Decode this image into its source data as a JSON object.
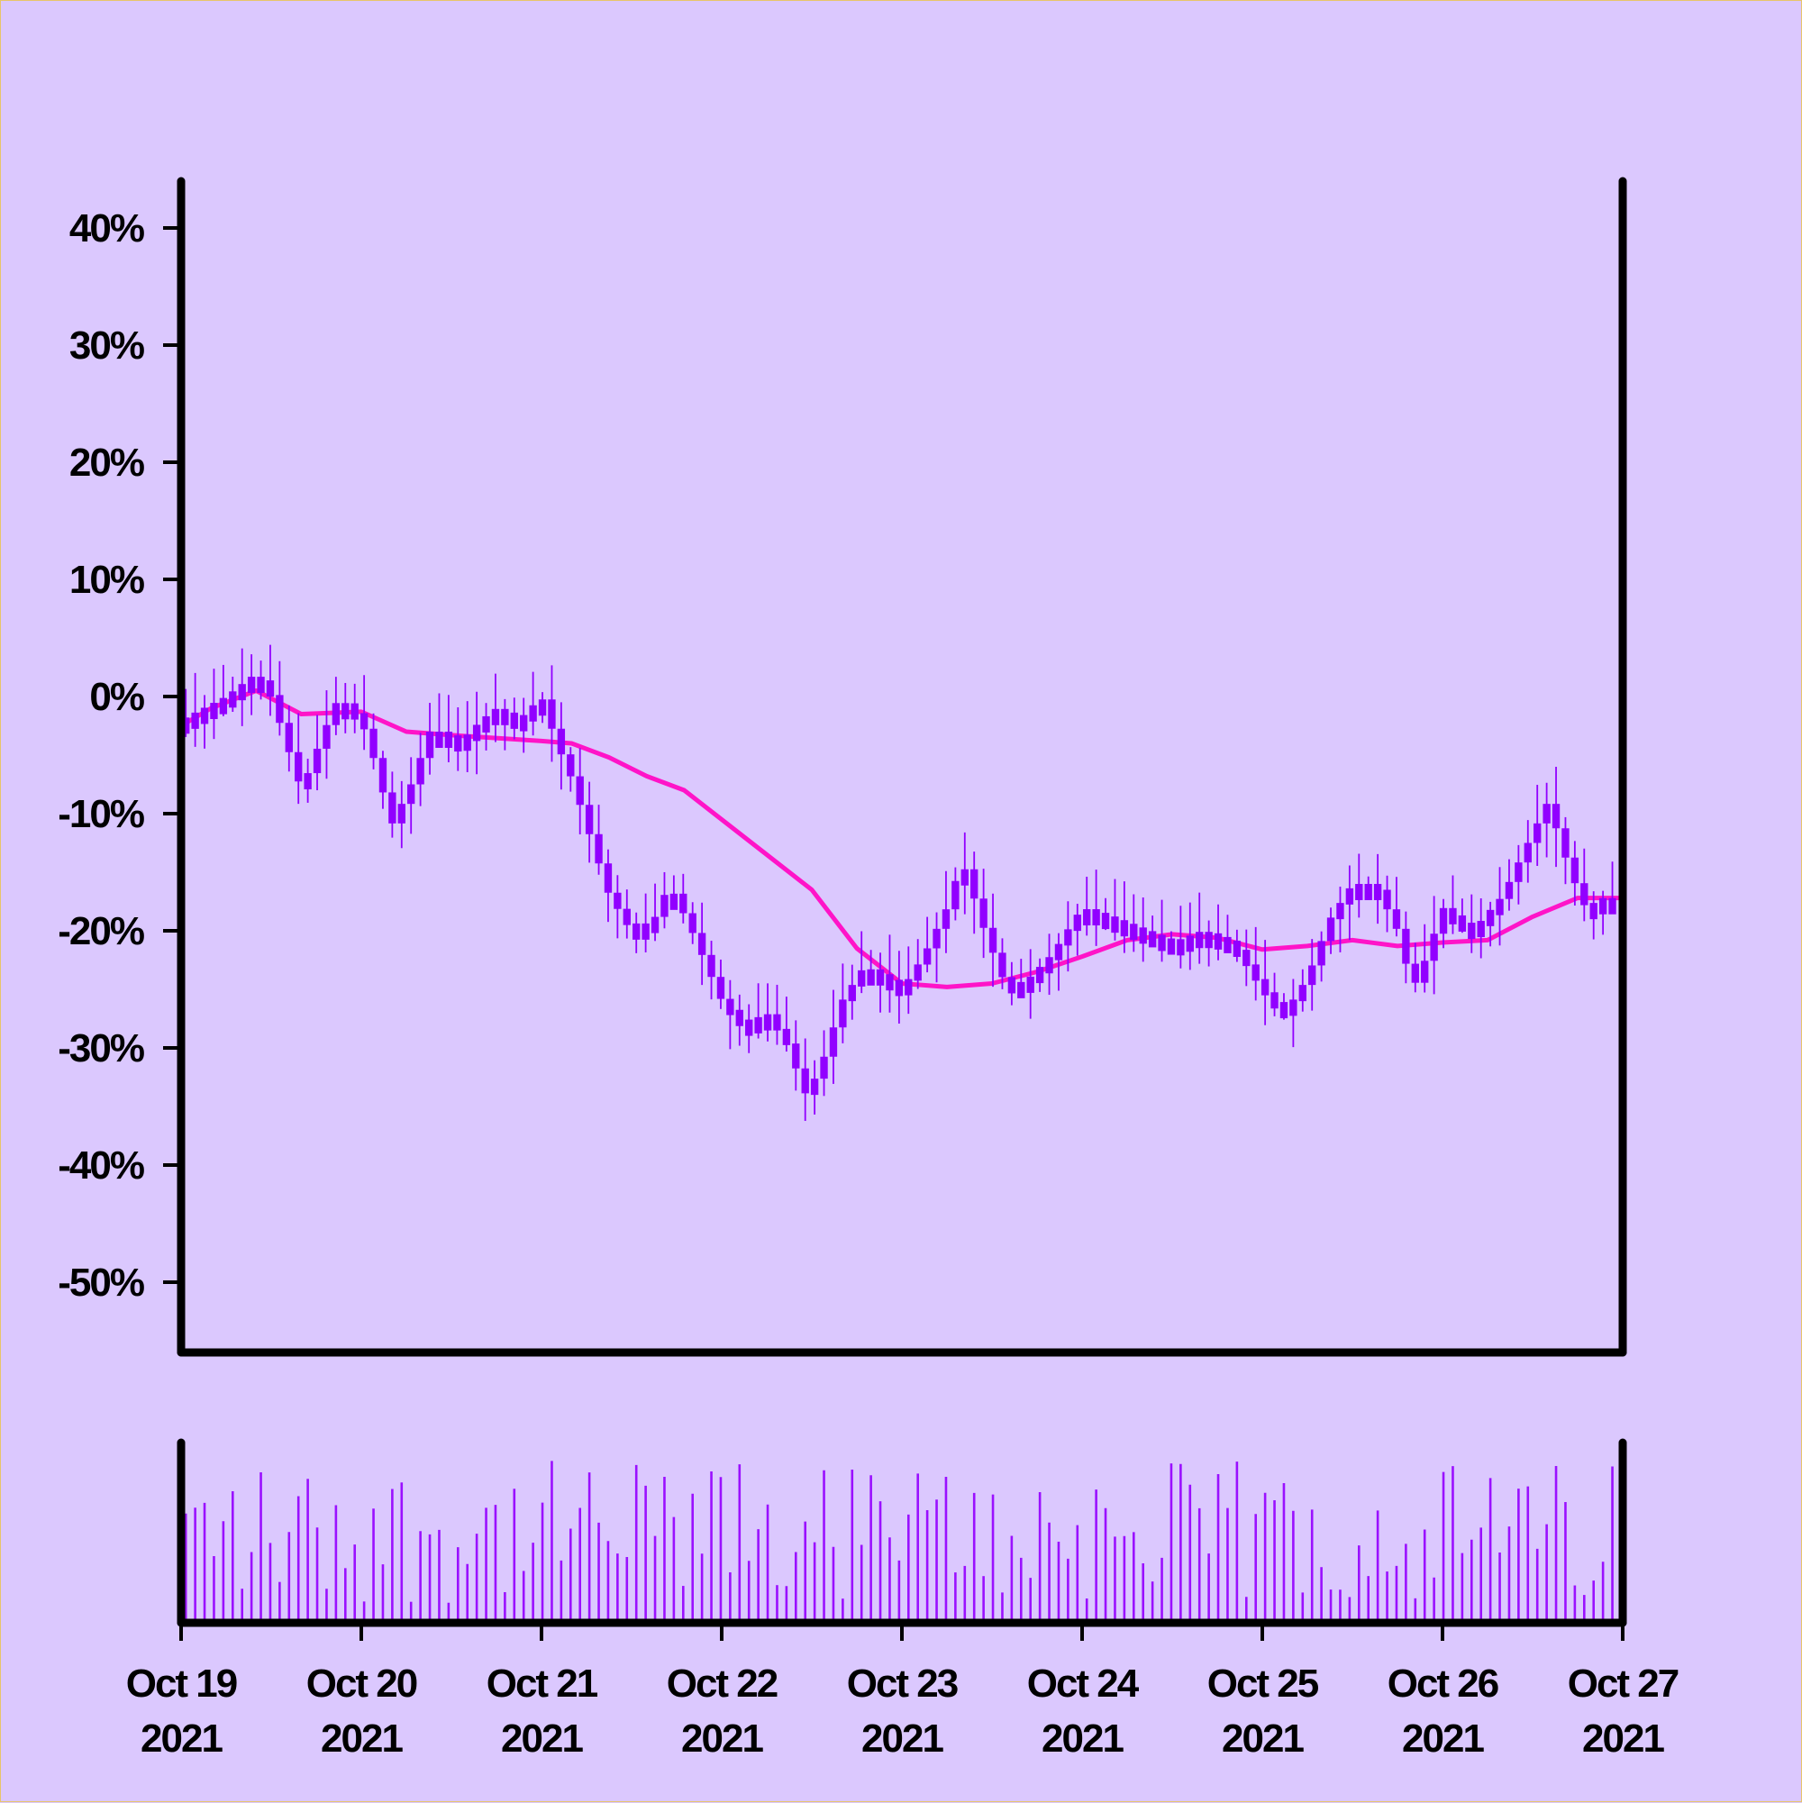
{
  "chart_data": {
    "type": "candlestick",
    "colors": {
      "background": "#dbc8fe",
      "candle": "#9100ff",
      "moving_average": "#ff14c8",
      "volume": "#9a10ff",
      "axis": "#000000"
    },
    "x_axis": {
      "ticks": [
        {
          "line1": "Oct 19",
          "line2": "2021"
        },
        {
          "line1": "Oct 20",
          "line2": "2021"
        },
        {
          "line1": "Oct 21",
          "line2": "2021"
        },
        {
          "line1": "Oct 22",
          "line2": "2021"
        },
        {
          "line1": "Oct 23",
          "line2": "2021"
        },
        {
          "line1": "Oct 24",
          "line2": "2021"
        },
        {
          "line1": "Oct 25",
          "line2": "2021"
        },
        {
          "line1": "Oct 26",
          "line2": "2021"
        },
        {
          "line1": "Oct 27",
          "line2": "2021"
        }
      ],
      "start": "2021-10-19",
      "end": "2021-10-27"
    },
    "y_axis": {
      "ticks": [
        40,
        30,
        20,
        10,
        0,
        -10,
        -20,
        -30,
        -40,
        -50
      ],
      "tick_labels": [
        "40%",
        "30%",
        "20%",
        "10%",
        "0%",
        "-10%",
        "-20%",
        "-30%",
        "-40%",
        "-50%"
      ],
      "ylim": [
        -56,
        44
      ]
    },
    "price_path": [
      [
        "2021-10-19T00:00",
        -2
      ],
      [
        "2021-10-19T06:00",
        0
      ],
      [
        "2021-10-19T10:00",
        2
      ],
      [
        "2021-10-19T12:00",
        0
      ],
      [
        "2021-10-19T14:00",
        -4
      ],
      [
        "2021-10-19T16:00",
        -8
      ],
      [
        "2021-10-19T19:00",
        -3
      ],
      [
        "2021-10-19T21:00",
        0
      ],
      [
        "2021-10-20T00:00",
        -2
      ],
      [
        "2021-10-20T02:00",
        -6
      ],
      [
        "2021-10-20T04:00",
        -11
      ],
      [
        "2021-10-20T07:00",
        -7
      ],
      [
        "2021-10-20T09:00",
        -3
      ],
      [
        "2021-10-20T11:00",
        -3
      ],
      [
        "2021-10-20T13:00",
        -4
      ],
      [
        "2021-10-20T16:00",
        -2
      ],
      [
        "2021-10-20T18:00",
        -1
      ],
      [
        "2021-10-20T21:00",
        -2
      ],
      [
        "2021-10-21T00:00",
        0
      ],
      [
        "2021-10-21T02:00",
        -4
      ],
      [
        "2021-10-21T04:00",
        -7
      ],
      [
        "2021-10-21T07:00",
        -13
      ],
      [
        "2021-10-21T09:00",
        -17
      ],
      [
        "2021-10-21T12:00",
        -20
      ],
      [
        "2021-10-21T15:00",
        -19
      ],
      [
        "2021-10-21T17:00",
        -16
      ],
      [
        "2021-10-21T20:00",
        -20
      ],
      [
        "2021-10-22T00:00",
        -26
      ],
      [
        "2021-10-22T03:00",
        -28
      ],
      [
        "2021-10-22T06:00",
        -27
      ],
      [
        "2021-10-22T09:00",
        -30
      ],
      [
        "2021-10-22T11:00",
        -34
      ],
      [
        "2021-10-22T13:00",
        -32
      ],
      [
        "2021-10-22T16:00",
        -26
      ],
      [
        "2021-10-22T19:00",
        -23
      ],
      [
        "2021-10-22T22:00",
        -24
      ],
      [
        "2021-10-23T00:00",
        -25
      ],
      [
        "2021-10-23T03:00",
        -22
      ],
      [
        "2021-10-23T06:00",
        -18
      ],
      [
        "2021-10-23T08:00",
        -14
      ],
      [
        "2021-10-23T11:00",
        -20
      ],
      [
        "2021-10-23T14:00",
        -25
      ],
      [
        "2021-10-23T17:00",
        -24
      ],
      [
        "2021-10-23T20:00",
        -22
      ],
      [
        "2021-10-24T00:00",
        -18
      ],
      [
        "2021-10-24T04:00",
        -19
      ],
      [
        "2021-10-24T08:00",
        -20
      ],
      [
        "2021-10-24T12:00",
        -21
      ],
      [
        "2021-10-24T16:00",
        -20
      ],
      [
        "2021-10-24T20:00",
        -21
      ],
      [
        "2021-10-25T00:00",
        -25
      ],
      [
        "2021-10-25T03:00",
        -27
      ],
      [
        "2021-10-25T06:00",
        -24
      ],
      [
        "2021-10-25T09:00",
        -19
      ],
      [
        "2021-10-25T12:00",
        -16
      ],
      [
        "2021-10-25T15:00",
        -16
      ],
      [
        "2021-10-25T18:00",
        -20
      ],
      [
        "2021-10-25T20:00",
        -25
      ],
      [
        "2021-10-25T22:00",
        -22
      ],
      [
        "2021-10-26T00:00",
        -18
      ],
      [
        "2021-10-26T04:00",
        -20
      ],
      [
        "2021-10-26T08:00",
        -17
      ],
      [
        "2021-10-26T11:00",
        -13
      ],
      [
        "2021-10-26T14:00",
        -9
      ],
      [
        "2021-10-26T17:00",
        -15
      ],
      [
        "2021-10-26T19:00",
        -18
      ],
      [
        "2021-10-26T22:00",
        -17
      ],
      [
        "2021-10-27T00:00",
        -18
      ]
    ],
    "moving_average": [
      [
        "2021-10-19T00:00",
        -2.5
      ],
      [
        "2021-10-19T04:00",
        -1
      ],
      [
        "2021-10-19T10:00",
        0.5
      ],
      [
        "2021-10-19T16:00",
        -1.5
      ],
      [
        "2021-10-20T00:00",
        -1.3
      ],
      [
        "2021-10-20T06:00",
        -3
      ],
      [
        "2021-10-20T12:00",
        -3.3
      ],
      [
        "2021-10-21T00:00",
        -3.8
      ],
      [
        "2021-10-21T04:00",
        -4
      ],
      [
        "2021-10-21T09:00",
        -5.2
      ],
      [
        "2021-10-21T14:00",
        -6.8
      ],
      [
        "2021-10-21T19:00",
        -8
      ],
      [
        "2021-10-22T00:00",
        -10.5
      ],
      [
        "2021-10-22T06:00",
        -13.5
      ],
      [
        "2021-10-22T12:00",
        -16.5
      ],
      [
        "2021-10-22T18:00",
        -21.5
      ],
      [
        "2021-10-23T00:00",
        -24.5
      ],
      [
        "2021-10-23T06:00",
        -24.8
      ],
      [
        "2021-10-23T12:00",
        -24.5
      ],
      [
        "2021-10-23T18:00",
        -23.5
      ],
      [
        "2021-10-24T00:00",
        -22.2
      ],
      [
        "2021-10-24T06:00",
        -20.8
      ],
      [
        "2021-10-24T12:00",
        -20.3
      ],
      [
        "2021-10-24T18:00",
        -20.6
      ],
      [
        "2021-10-25T00:00",
        -21.6
      ],
      [
        "2021-10-25T06:00",
        -21.3
      ],
      [
        "2021-10-25T12:00",
        -20.8
      ],
      [
        "2021-10-25T18:00",
        -21.3
      ],
      [
        "2021-10-26T00:00",
        -21
      ],
      [
        "2021-10-26T06:00",
        -20.8
      ],
      [
        "2021-10-26T12:00",
        -18.8
      ],
      [
        "2021-10-26T18:00",
        -17.2
      ],
      [
        "2021-10-27T00:00",
        -17.2
      ]
    ]
  }
}
